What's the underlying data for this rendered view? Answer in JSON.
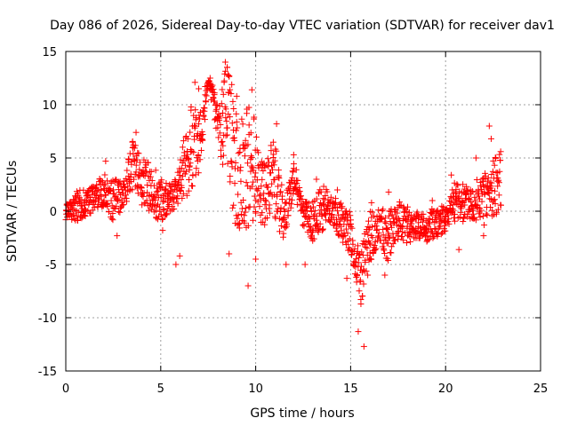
{
  "chart_data": {
    "type": "scatter",
    "title": "Day 086 of 2026, Sidereal Day-to-day VTEC variation (SDTVAR) for receiver dav1",
    "xlabel": "GPS time / hours",
    "ylabel": "SDTVAR / TECUs",
    "xlim": [
      0,
      25
    ],
    "ylim": [
      -15,
      15
    ],
    "xticks": [
      0,
      5,
      10,
      15,
      20,
      25
    ],
    "yticks": [
      -15,
      -10,
      -5,
      0,
      5,
      10,
      15
    ],
    "xtick_labels": [
      "0",
      "5",
      "10",
      "15",
      "20",
      "25"
    ],
    "ytick_labels": [
      "-15",
      "-10",
      "-5",
      "0",
      "5",
      "10",
      "15"
    ],
    "grid": true,
    "marker": "+",
    "color": "#ff0000",
    "series": [
      {
        "name": "SDTVAR",
        "envelope": [
          {
            "x": 0.0,
            "y": [
              -0.5,
              0.5
            ]
          },
          {
            "x": 0.5,
            "y": [
              -1.0,
              2.0
            ]
          },
          {
            "x": 1.0,
            "y": [
              -0.5,
              2.0
            ]
          },
          {
            "x": 1.5,
            "y": [
              0.0,
              2.5
            ]
          },
          {
            "x": 2.0,
            "y": [
              0.5,
              3.5
            ]
          },
          {
            "x": 2.5,
            "y": [
              -1.0,
              3.0
            ]
          },
          {
            "x": 3.0,
            "y": [
              0.0,
              3.0
            ]
          },
          {
            "x": 3.5,
            "y": [
              2.0,
              7.0
            ]
          },
          {
            "x": 4.0,
            "y": [
              0.5,
              5.0
            ]
          },
          {
            "x": 4.5,
            "y": [
              -0.5,
              4.5
            ]
          },
          {
            "x": 5.0,
            "y": [
              -1.0,
              3.0
            ]
          },
          {
            "x": 5.5,
            "y": [
              0.0,
              2.5
            ]
          },
          {
            "x": 6.0,
            "y": [
              0.5,
              5.0
            ]
          },
          {
            "x": 6.5,
            "y": [
              1.5,
              10.0
            ]
          },
          {
            "x": 7.0,
            "y": [
              3.5,
              11.0
            ]
          },
          {
            "x": 7.5,
            "y": [
              12.0,
              12.5
            ]
          },
          {
            "x": 8.0,
            "y": [
              6.0,
              11.0
            ]
          },
          {
            "x": 8.5,
            "y": [
              2.0,
              14.0
            ]
          },
          {
            "x": 9.0,
            "y": [
              -2.0,
              9.0
            ]
          },
          {
            "x": 9.5,
            "y": [
              -2.0,
              10.0
            ]
          },
          {
            "x": 10.0,
            "y": [
              -1.0,
              9.0
            ]
          },
          {
            "x": 10.5,
            "y": [
              -1.5,
              4.5
            ]
          },
          {
            "x": 11.0,
            "y": [
              -1.0,
              7.5
            ]
          },
          {
            "x": 11.5,
            "y": [
              -3.0,
              1.0
            ]
          },
          {
            "x": 12.0,
            "y": [
              2.0,
              5.0
            ]
          },
          {
            "x": 12.5,
            "y": [
              -2.0,
              1.0
            ]
          },
          {
            "x": 13.0,
            "y": [
              -3.0,
              1.0
            ]
          },
          {
            "x": 13.5,
            "y": [
              -2.0,
              2.5
            ]
          },
          {
            "x": 14.0,
            "y": [
              -1.0,
              1.5
            ]
          },
          {
            "x": 14.5,
            "y": [
              -3.0,
              1.0
            ]
          },
          {
            "x": 15.0,
            "y": [
              -4.0,
              0.0
            ]
          },
          {
            "x": 15.5,
            "y": [
              -9.0,
              -4.0
            ]
          },
          {
            "x": 16.0,
            "y": [
              -5.0,
              0.0
            ]
          },
          {
            "x": 16.5,
            "y": [
              -3.0,
              0.5
            ]
          },
          {
            "x": 17.0,
            "y": [
              -5.0,
              0.0
            ]
          },
          {
            "x": 17.5,
            "y": [
              -3.0,
              1.0
            ]
          },
          {
            "x": 18.0,
            "y": [
              -3.0,
              0.0
            ]
          },
          {
            "x": 18.5,
            "y": [
              -2.5,
              0.0
            ]
          },
          {
            "x": 19.0,
            "y": [
              -3.0,
              0.0
            ]
          },
          {
            "x": 19.5,
            "y": [
              -2.5,
              0.5
            ]
          },
          {
            "x": 20.0,
            "y": [
              -2.0,
              0.5
            ]
          },
          {
            "x": 20.5,
            "y": [
              -1.0,
              3.0
            ]
          },
          {
            "x": 21.0,
            "y": [
              -1.0,
              2.5
            ]
          },
          {
            "x": 21.5,
            "y": [
              -1.0,
              3.0
            ]
          },
          {
            "x": 22.0,
            "y": [
              -1.5,
              3.5
            ]
          },
          {
            "x": 22.5,
            "y": [
              -1.0,
              5.0
            ]
          },
          {
            "x": 22.9,
            "y": [
              0.5,
              5.5
            ]
          }
        ],
        "extremes": [
          {
            "x": 0.0,
            "y": -0.8
          },
          {
            "x": 1.4,
            "y": 2.3
          },
          {
            "x": 2.1,
            "y": 4.7
          },
          {
            "x": 2.7,
            "y": -2.3
          },
          {
            "x": 3.7,
            "y": 7.4
          },
          {
            "x": 5.1,
            "y": -1.8
          },
          {
            "x": 5.8,
            "y": -5.0
          },
          {
            "x": 6.0,
            "y": -4.2
          },
          {
            "x": 6.8,
            "y": 12.1
          },
          {
            "x": 7.0,
            "y": 11.5
          },
          {
            "x": 7.6,
            "y": 12.5
          },
          {
            "x": 8.4,
            "y": 14.0
          },
          {
            "x": 8.5,
            "y": 13.5
          },
          {
            "x": 8.6,
            "y": -4.0
          },
          {
            "x": 9.0,
            "y": 10.8
          },
          {
            "x": 9.6,
            "y": -7.0
          },
          {
            "x": 9.8,
            "y": 11.4
          },
          {
            "x": 10.0,
            "y": -4.5
          },
          {
            "x": 11.1,
            "y": 8.2
          },
          {
            "x": 11.6,
            "y": -5.0
          },
          {
            "x": 12.0,
            "y": 5.3
          },
          {
            "x": 12.6,
            "y": -5.0
          },
          {
            "x": 13.2,
            "y": 3.0
          },
          {
            "x": 14.3,
            "y": 2.0
          },
          {
            "x": 14.8,
            "y": -6.3
          },
          {
            "x": 15.4,
            "y": -11.3
          },
          {
            "x": 15.7,
            "y": -12.7
          },
          {
            "x": 15.9,
            "y": -6.0
          },
          {
            "x": 16.1,
            "y": 0.8
          },
          {
            "x": 16.8,
            "y": -6.0
          },
          {
            "x": 17.0,
            "y": 1.8
          },
          {
            "x": 18.0,
            "y": 0.4
          },
          {
            "x": 19.3,
            "y": 1.0
          },
          {
            "x": 20.3,
            "y": 3.4
          },
          {
            "x": 20.7,
            "y": -3.6
          },
          {
            "x": 21.6,
            "y": 5.0
          },
          {
            "x": 22.0,
            "y": -2.3
          },
          {
            "x": 22.3,
            "y": 8.0
          },
          {
            "x": 22.4,
            "y": 6.8
          },
          {
            "x": 22.9,
            "y": 5.6
          }
        ]
      }
    ]
  }
}
